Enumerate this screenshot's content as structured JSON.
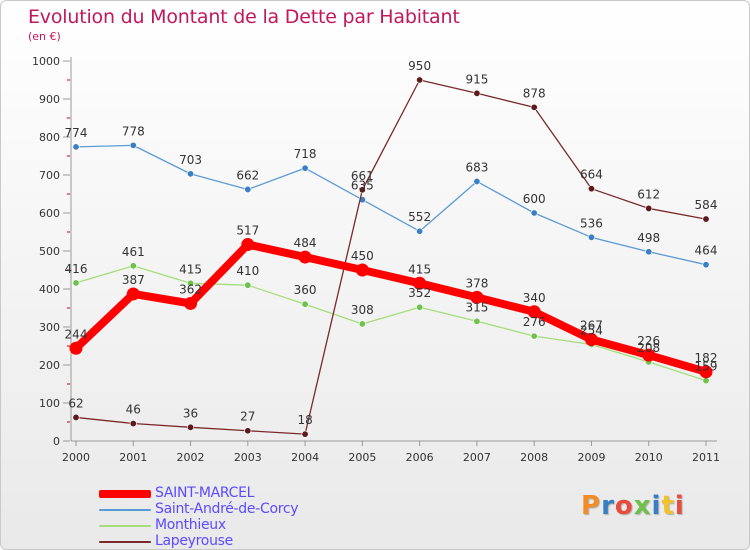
{
  "title": "Evolution du Montant de la Dette par Habitant",
  "subtitle": "(en €)",
  "logo_text": "Proxiti",
  "colors": {
    "title": "#c2185b",
    "axis": "#999999",
    "tick_red": "#cc0000",
    "label": "#333333",
    "legend_text": "#5b4bff"
  },
  "chart_data": {
    "type": "line",
    "title": "Evolution du Montant de la Dette par Habitant",
    "subtitle": "(en €)",
    "x": [
      "2000",
      "2001",
      "2002",
      "2003",
      "2004",
      "2005",
      "2006",
      "2007",
      "2008",
      "2009",
      "2010",
      "2011"
    ],
    "ylim": [
      0,
      1000
    ],
    "yticks": [
      0,
      100,
      200,
      300,
      400,
      500,
      600,
      700,
      800,
      900,
      1000
    ],
    "grid": false,
    "legend_position": "bottom-left",
    "series": [
      {
        "name": "SAINT-MARCEL",
        "color": "#ff0000",
        "marker_color": "#ff0000",
        "emphasis": "thick",
        "values": [
          244,
          387,
          362,
          517,
          484,
          450,
          415,
          378,
          340,
          267,
          226,
          182
        ]
      },
      {
        "name": "Saint-André-de-Corcy",
        "color": "#5b9bd5",
        "marker_color": "#3a7fc4",
        "emphasis": "normal",
        "values": [
          774,
          778,
          703,
          662,
          718,
          635,
          552,
          683,
          600,
          536,
          498,
          464
        ]
      },
      {
        "name": "Monthieux",
        "color": "#a4de7a",
        "marker_color": "#6cc24a",
        "emphasis": "normal",
        "values": [
          416,
          461,
          415,
          410,
          360,
          308,
          352,
          315,
          276,
          254,
          208,
          159
        ]
      },
      {
        "name": "Lapeyrouse",
        "color": "#7a2a2a",
        "marker_color": "#5e1a1a",
        "emphasis": "normal",
        "values": [
          62,
          46,
          36,
          27,
          18,
          661,
          950,
          915,
          878,
          664,
          612,
          584
        ]
      }
    ]
  }
}
